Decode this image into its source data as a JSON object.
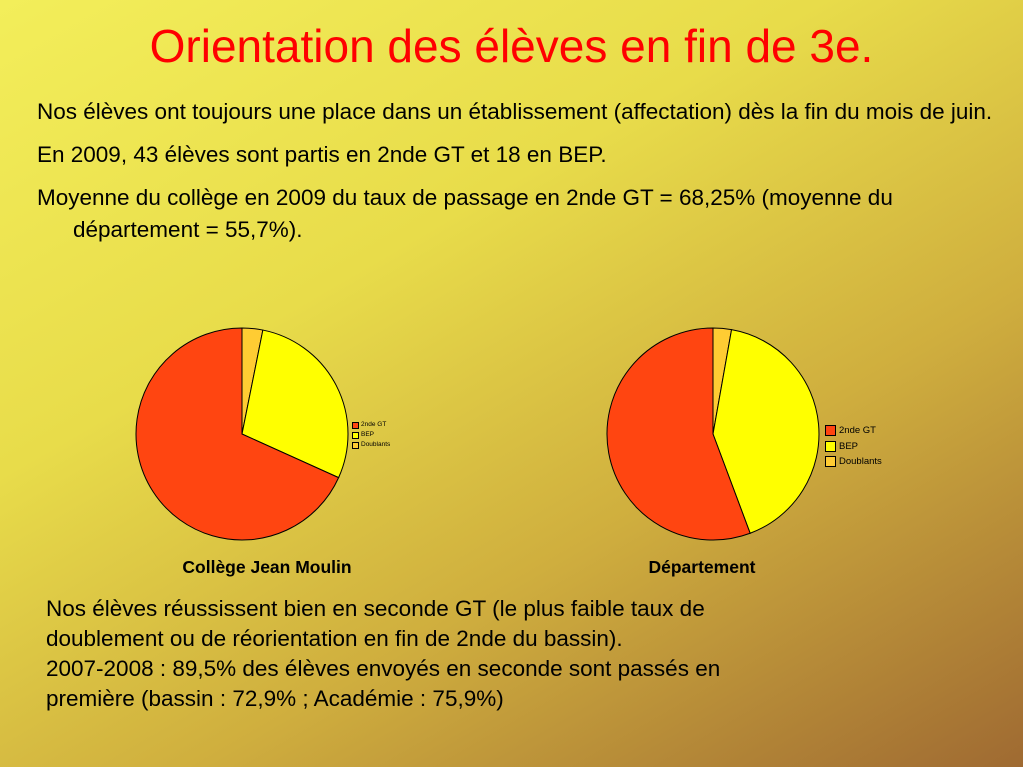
{
  "title": "Orientation des élèves en fin de 3e.",
  "bullets": [
    "Nos élèves ont toujours une place dans un établissement (affectation) dès la fin du mois de juin.",
    "En 2009, 43 élèves sont partis en 2nde GT et 18 en BEP.",
    "Moyenne du collège en 2009 du taux de passage en 2nde GT = 68,25% (moyenne du département = 55,7%)."
  ],
  "captions": {
    "college": "Collège Jean Moulin",
    "departement": "Département"
  },
  "colors": {
    "title": "#ff0000",
    "gt": "#ff4511",
    "bep": "#ffff00",
    "doublants": "#ffcc33"
  },
  "footer_lines": [
    "Nos élèves réussissent bien en seconde GT (le plus faible taux  de",
    "doublement ou de réorientation en fin de 2nde du bassin).",
    "2007-2008 : 89,5% des élèves envoyés en seconde sont passés en",
    "première (bassin : 72,9% ; Académie : 75,9%)"
  ],
  "chart_data": [
    {
      "type": "pie",
      "title": "Collège Jean Moulin",
      "labels": [
        "2nde GT",
        "BEP",
        "Doublants"
      ],
      "values": [
        68.25,
        28.6,
        3.15
      ],
      "colors": [
        "#ff4511",
        "#ffff00",
        "#ffcc33"
      ],
      "legend": "right"
    },
    {
      "type": "pie",
      "title": "Département",
      "labels": [
        "2nde GT",
        "BEP",
        "Doublants"
      ],
      "values": [
        55.7,
        41.5,
        2.8
      ],
      "colors": [
        "#ff4511",
        "#ffff00",
        "#ffcc33"
      ],
      "legend": "right"
    }
  ]
}
